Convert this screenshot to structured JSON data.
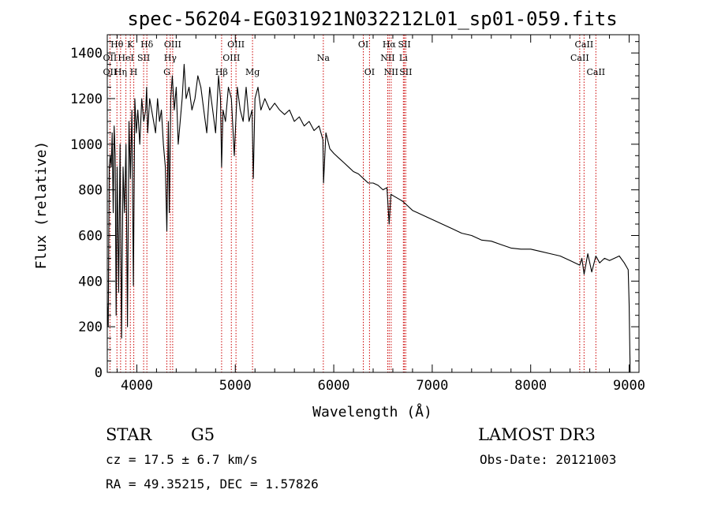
{
  "chart_data": {
    "type": "line",
    "title": "spec-56204-EG031921N032212L01_sp01-059.fits",
    "xlabel": "Wavelength (Å)",
    "ylabel": "Flux (relative)",
    "xlim": [
      3700,
      9100
    ],
    "ylim": [
      0,
      1480
    ],
    "xticks": [
      4000,
      5000,
      6000,
      7000,
      8000,
      9000
    ],
    "yticks": [
      0,
      200,
      400,
      600,
      800,
      1000,
      1200,
      1400
    ],
    "xtick_labels": [
      "4000",
      "5000",
      "6000",
      "7000",
      "8000",
      "9000"
    ],
    "ytick_labels": [
      "0",
      "200",
      "400",
      "600",
      "800",
      "1000",
      "1200",
      "1400"
    ],
    "series": [
      {
        "name": "flux",
        "color": "#000000",
        "x": [
          3700,
          3710,
          3720,
          3730,
          3740,
          3750,
          3760,
          3770,
          3780,
          3790,
          3800,
          3815,
          3830,
          3845,
          3860,
          3875,
          3890,
          3905,
          3920,
          3935,
          3950,
          3965,
          3980,
          3995,
          4010,
          4030,
          4050,
          4070,
          4090,
          4100,
          4110,
          4130,
          4150,
          4170,
          4190,
          4210,
          4230,
          4250,
          4270,
          4290,
          4305,
          4320,
          4330,
          4345,
          4360,
          4380,
          4400,
          4420,
          4440,
          4460,
          4480,
          4500,
          4530,
          4560,
          4590,
          4620,
          4650,
          4680,
          4710,
          4740,
          4770,
          4800,
          4830,
          4850,
          4861,
          4875,
          4900,
          4930,
          4960,
          4990,
          5020,
          5050,
          5080,
          5110,
          5140,
          5170,
          5183,
          5200,
          5230,
          5260,
          5300,
          5350,
          5400,
          5450,
          5500,
          5550,
          5600,
          5650,
          5700,
          5750,
          5800,
          5850,
          5890,
          5896,
          5920,
          5960,
          6000,
          6050,
          6100,
          6150,
          6200,
          6250,
          6300,
          6350,
          6400,
          6450,
          6500,
          6540,
          6563,
          6580,
          6620,
          6660,
          6700,
          6750,
          6800,
          6850,
          6900,
          6950,
          7000,
          7100,
          7200,
          7300,
          7400,
          7500,
          7600,
          7700,
          7800,
          7900,
          8000,
          8100,
          8200,
          8300,
          8400,
          8498,
          8520,
          8542,
          8580,
          8620,
          8662,
          8700,
          8750,
          8800,
          8850,
          8900,
          8950,
          8990,
          9000,
          9010
        ],
        "y": [
          300,
          200,
          900,
          950,
          900,
          1050,
          700,
          1080,
          950,
          250,
          900,
          350,
          1000,
          150,
          900,
          700,
          1000,
          200,
          1100,
          850,
          1150,
          380,
          1200,
          1050,
          1150,
          1000,
          1200,
          1100,
          1150,
          1250,
          1050,
          1200,
          1150,
          1100,
          1050,
          1200,
          1100,
          1150,
          1000,
          900,
          620,
          1100,
          700,
          1200,
          1300,
          1150,
          1250,
          1000,
          1100,
          1200,
          1350,
          1200,
          1250,
          1150,
          1200,
          1300,
          1250,
          1150,
          1050,
          1250,
          1150,
          1050,
          1300,
          1200,
          900,
          1150,
          1100,
          1250,
          1200,
          950,
          1250,
          1150,
          1100,
          1250,
          1100,
          1150,
          850,
          1200,
          1250,
          1150,
          1200,
          1150,
          1180,
          1150,
          1130,
          1150,
          1100,
          1120,
          1080,
          1100,
          1060,
          1080,
          1020,
          830,
          1050,
          980,
          960,
          940,
          920,
          900,
          880,
          870,
          850,
          830,
          830,
          820,
          800,
          810,
          650,
          780,
          770,
          760,
          750,
          730,
          710,
          700,
          690,
          680,
          670,
          650,
          630,
          610,
          600,
          580,
          575,
          560,
          545,
          540,
          540,
          530,
          520,
          510,
          490,
          470,
          500,
          430,
          520,
          440,
          510,
          480,
          500,
          490,
          500,
          510,
          480,
          450,
          300,
          0
        ]
      }
    ],
    "line_labels": [
      {
        "name": "Hθ",
        "x": 3798,
        "row": 0
      },
      {
        "name": "OII",
        "x": 3727,
        "row": 1
      },
      {
        "name": "OII",
        "x": 3727,
        "row": 2
      },
      {
        "name": "Hη",
        "x": 3835,
        "row": 2
      },
      {
        "name": "HeI",
        "x": 3889,
        "row": 1
      },
      {
        "name": "K",
        "x": 3934,
        "row": 0
      },
      {
        "name": "H",
        "x": 3969,
        "row": 2
      },
      {
        "name": "SII",
        "x": 4069,
        "row": 1
      },
      {
        "name": "Hδ",
        "x": 4102,
        "row": 0
      },
      {
        "name": "OIII",
        "x": 4364,
        "row": 0
      },
      {
        "name": "Hγ",
        "x": 4340,
        "row": 1
      },
      {
        "name": "G",
        "x": 4305,
        "row": 2
      },
      {
        "name": "Hβ",
        "x": 4861,
        "row": 2
      },
      {
        "name": "OIII",
        "x": 4960,
        "row": 1
      },
      {
        "name": "OIII",
        "x": 5007,
        "row": 0
      },
      {
        "name": "Mg",
        "x": 5175,
        "row": 2
      },
      {
        "name": "Na",
        "x": 5894,
        "row": 1
      },
      {
        "name": "OI",
        "x": 6300,
        "row": 0
      },
      {
        "name": "OI",
        "x": 6363,
        "row": 2
      },
      {
        "name": "Hα",
        "x": 6563,
        "row": 0
      },
      {
        "name": "NII",
        "x": 6548,
        "row": 1
      },
      {
        "name": "NII",
        "x": 6583,
        "row": 2
      },
      {
        "name": "SII",
        "x": 6717,
        "row": 0
      },
      {
        "name": "Li",
        "x": 6707,
        "row": 1
      },
      {
        "name": "SII",
        "x": 6731,
        "row": 2
      },
      {
        "name": "CaII",
        "x": 8542,
        "row": 0
      },
      {
        "name": "CaII",
        "x": 8498,
        "row": 1
      },
      {
        "name": "CaII",
        "x": 8662,
        "row": 2
      }
    ],
    "line_marker_color": "#cc0000"
  },
  "info": {
    "object_class": "STAR",
    "subclass": "G5",
    "survey": "LAMOST DR3",
    "cz": "cz = 17.5 ± 6.7 km/s",
    "obs_date": "Obs-Date: 20121003",
    "coords": "RA =  49.35215, DEC =   1.57826"
  }
}
